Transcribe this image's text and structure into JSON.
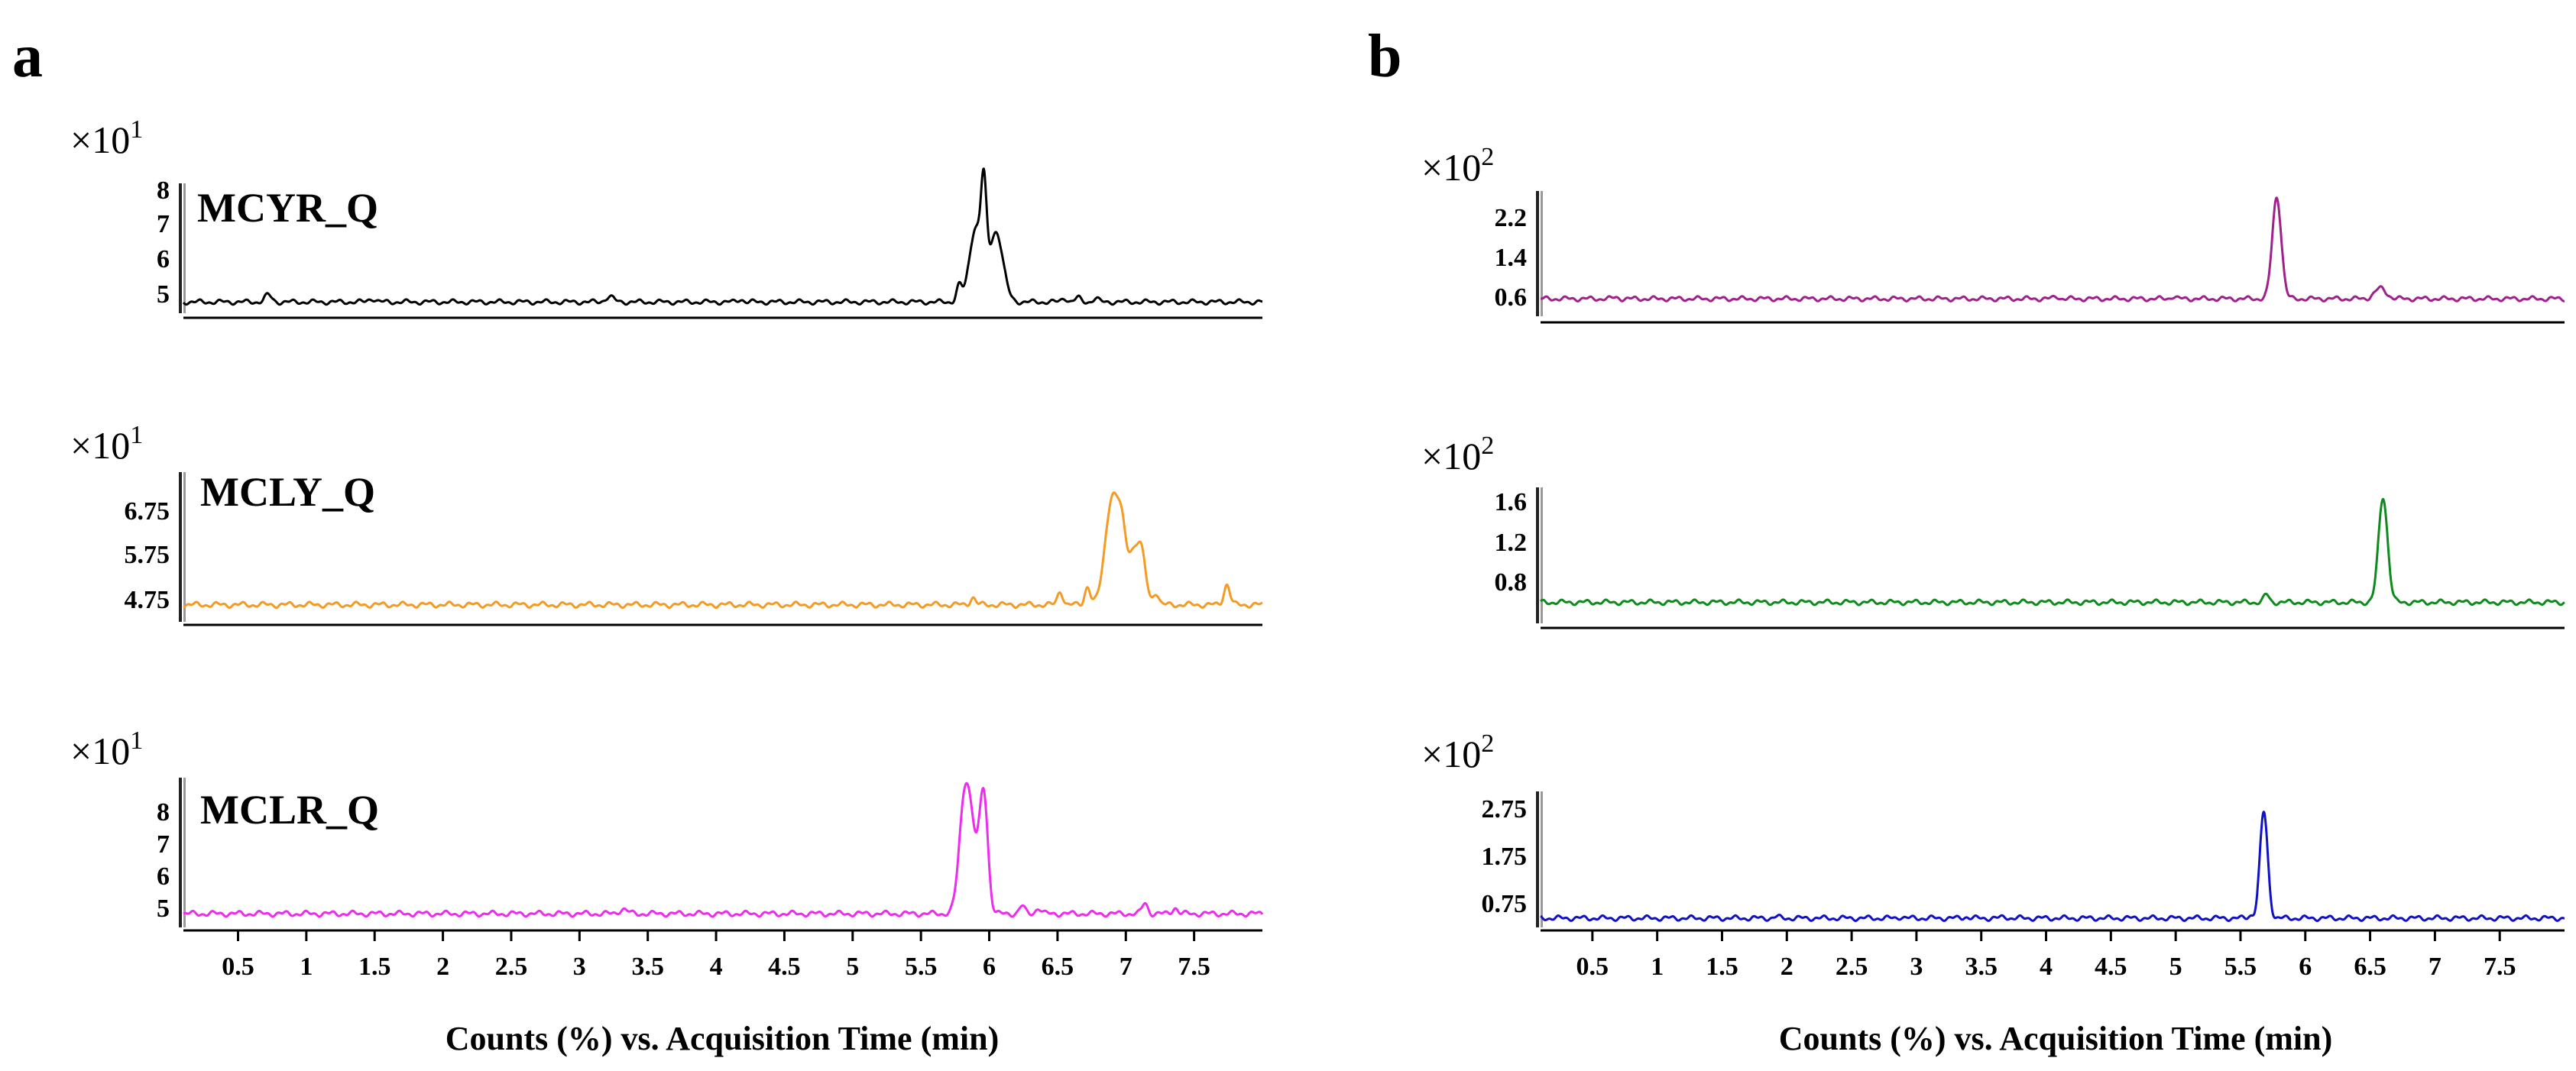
{
  "panels": [
    {
      "letter": "a",
      "xlabel": "Counts (%) vs. Acquisition Time (min)",
      "x_ticks": [
        "0.5",
        "1",
        "1.5",
        "2",
        "2.5",
        "3",
        "3.5",
        "4",
        "4.5",
        "5",
        "5.5",
        "6",
        "6.5",
        "7",
        "7.5"
      ],
      "xlim": [
        0.1,
        8.0
      ]
    },
    {
      "letter": "b",
      "xlabel": "Counts (%) vs. Acquisition Time (min)",
      "x_ticks": [
        "0.5",
        "1",
        "1.5",
        "2",
        "2.5",
        "3",
        "3.5",
        "4",
        "4.5",
        "5",
        "5.5",
        "6",
        "6.5",
        "7",
        "7.5"
      ],
      "xlim": [
        0.1,
        8.0
      ]
    }
  ],
  "chart_data": [
    {
      "type": "line",
      "panel": "a",
      "row": 0,
      "compound_label": "MCYR_Q",
      "multiplier_base": "×10",
      "multiplier_exp": "1",
      "color": "#000000",
      "y_ticks": [
        "8",
        "7",
        "6",
        "5"
      ],
      "y_tick_values": [
        8,
        7,
        6,
        5
      ],
      "ylim": [
        4.4,
        8.1
      ],
      "baseline": 4.72,
      "peaks": [
        {
          "x": 0.72,
          "h": 0.2,
          "w": 0.025
        },
        {
          "x": 1.48,
          "h": 0.1,
          "w": 0.025
        },
        {
          "x": 3.22,
          "h": 0.15,
          "w": 0.03
        },
        {
          "x": 4.18,
          "h": 0.08,
          "w": 0.02
        },
        {
          "x": 5.78,
          "h": 0.45,
          "w": 0.02
        },
        {
          "x": 5.9,
          "h": 2.1,
          "w": 0.045
        },
        {
          "x": 5.96,
          "h": 2.5,
          "w": 0.02
        },
        {
          "x": 6.05,
          "h": 2.0,
          "w": 0.05
        },
        {
          "x": 6.55,
          "h": 0.12,
          "w": 0.02
        },
        {
          "x": 6.65,
          "h": 0.12,
          "w": 0.02
        },
        {
          "x": 6.78,
          "h": 0.1,
          "w": 0.02
        }
      ]
    },
    {
      "type": "line",
      "panel": "a",
      "row": 1,
      "compound_label": "MCLY_Q",
      "multiplier_base": "×10",
      "multiplier_exp": "1",
      "color": "#f59a23",
      "y_ticks": [
        "6.75",
        "5.75",
        "4.75"
      ],
      "y_tick_values": [
        6.75,
        5.75,
        4.75
      ],
      "ylim": [
        4.4,
        7.45
      ],
      "baseline": 4.72,
      "peaks": [
        {
          "x": 5.88,
          "h": 0.15,
          "w": 0.02
        },
        {
          "x": 6.52,
          "h": 0.28,
          "w": 0.02
        },
        {
          "x": 6.72,
          "h": 0.38,
          "w": 0.02
        },
        {
          "x": 6.9,
          "h": 2.2,
          "w": 0.05
        },
        {
          "x": 6.97,
          "h": 0.9,
          "w": 0.03
        },
        {
          "x": 7.06,
          "h": 1.1,
          "w": 0.05
        },
        {
          "x": 7.12,
          "h": 0.6,
          "w": 0.03
        },
        {
          "x": 7.22,
          "h": 0.25,
          "w": 0.02
        },
        {
          "x": 7.74,
          "h": 0.42,
          "w": 0.022
        }
      ]
    },
    {
      "type": "line",
      "panel": "a",
      "row": 2,
      "compound_label": "MCLR_Q",
      "multiplier_base": "×10",
      "multiplier_exp": "1",
      "color": "#ee2bee",
      "y_ticks": [
        "8",
        "7",
        "6",
        "5"
      ],
      "y_tick_values": [
        8,
        7,
        6,
        5
      ],
      "ylim": [
        4.4,
        8.3
      ],
      "baseline": 4.72,
      "peaks": [
        {
          "x": 3.32,
          "h": 0.12,
          "w": 0.03
        },
        {
          "x": 5.82,
          "h": 2.9,
          "w": 0.04
        },
        {
          "x": 5.88,
          "h": 1.5,
          "w": 0.04
        },
        {
          "x": 5.96,
          "h": 3.1,
          "w": 0.03
        },
        {
          "x": 6.24,
          "h": 0.2,
          "w": 0.02
        },
        {
          "x": 6.36,
          "h": 0.15,
          "w": 0.02
        },
        {
          "x": 7.14,
          "h": 0.28,
          "w": 0.02
        },
        {
          "x": 7.36,
          "h": 0.16,
          "w": 0.02
        }
      ]
    },
    {
      "type": "line",
      "panel": "b",
      "row": 0,
      "compound_label": "",
      "multiplier_base": "×10",
      "multiplier_exp": "2",
      "color": "#a0208c",
      "y_ticks": [
        "2.2",
        "1.4",
        "0.6"
      ],
      "y_tick_values": [
        2.2,
        1.4,
        0.6
      ],
      "ylim": [
        0.1,
        2.75
      ],
      "baseline": 0.47,
      "peaks": [
        {
          "x": 0.68,
          "h": 0.03,
          "w": 0.02
        },
        {
          "x": 4.08,
          "h": 0.05,
          "w": 0.02
        },
        {
          "x": 4.98,
          "h": 0.05,
          "w": 0.02
        },
        {
          "x": 5.78,
          "h": 2.15,
          "w": 0.035
        },
        {
          "x": 6.58,
          "h": 0.22,
          "w": 0.045
        }
      ]
    },
    {
      "type": "line",
      "panel": "b",
      "row": 1,
      "compound_label": "",
      "multiplier_base": "×10",
      "multiplier_exp": "2",
      "color": "#0f8a1c",
      "y_ticks": [
        "1.6",
        "1.2",
        "0.8"
      ],
      "y_tick_values": [
        1.6,
        1.2,
        0.8
      ],
      "ylim": [
        0.3,
        1.72
      ],
      "baseline": 0.52,
      "peaks": [
        {
          "x": 5.7,
          "h": 0.08,
          "w": 0.02
        },
        {
          "x": 6.6,
          "h": 1.1,
          "w": 0.035
        }
      ]
    },
    {
      "type": "line",
      "panel": "b",
      "row": 2,
      "compound_label": "",
      "multiplier_base": "×10",
      "multiplier_exp": "2",
      "color": "#1010c8",
      "y_ticks": [
        "2.75",
        "1.75",
        "0.75"
      ],
      "y_tick_values": [
        2.75,
        1.75,
        0.75
      ],
      "ylim": [
        0.1,
        3.05
      ],
      "baseline": 0.3,
      "peaks": [
        {
          "x": 1.92,
          "h": 0.03,
          "w": 0.02
        },
        {
          "x": 2.88,
          "h": 0.03,
          "w": 0.02
        },
        {
          "x": 3.38,
          "h": 0.03,
          "w": 0.02
        },
        {
          "x": 3.68,
          "h": 0.03,
          "w": 0.02
        },
        {
          "x": 5.58,
          "h": 0.06,
          "w": 0.02
        },
        {
          "x": 5.68,
          "h": 2.3,
          "w": 0.03
        }
      ]
    }
  ]
}
